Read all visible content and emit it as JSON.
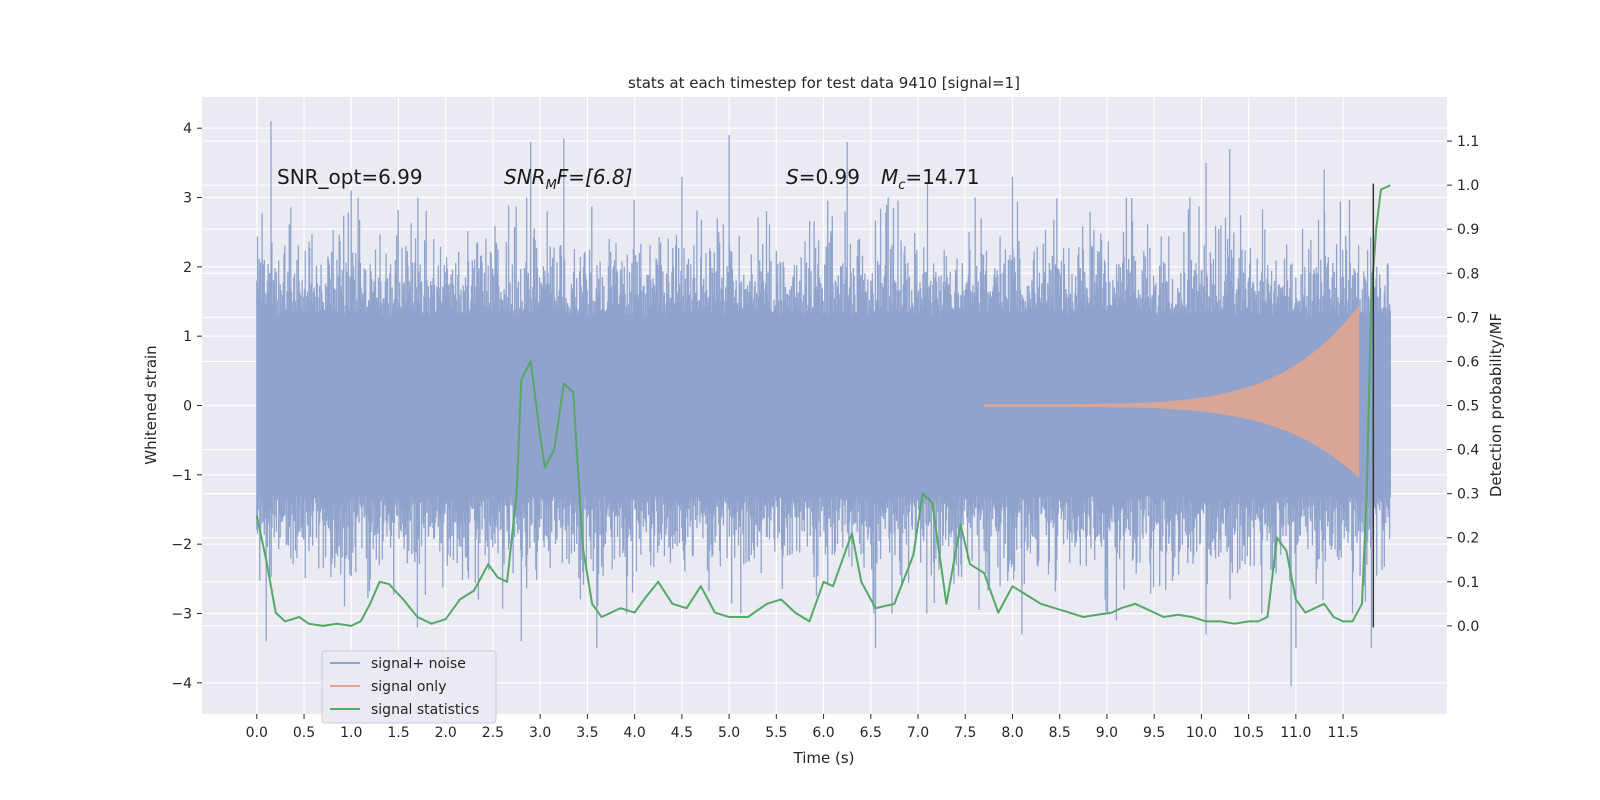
{
  "chart_data": {
    "type": "line",
    "title": "stats at each timestep for test data 9410 [signal=1]",
    "xlabel": "Time (s)",
    "ylabel_left": "Whitened strain",
    "ylabel_right": "Detection probability/MF",
    "xlim": [
      -0.58,
      12.6
    ],
    "ylim_left": [
      -4.45,
      4.45
    ],
    "ylim_right": [
      -0.2,
      1.2
    ],
    "x_ticks": [
      0.0,
      0.5,
      1.0,
      1.5,
      2.0,
      2.5,
      3.0,
      3.5,
      4.0,
      4.5,
      5.0,
      5.5,
      6.0,
      6.5,
      7.0,
      7.5,
      8.0,
      8.5,
      9.0,
      9.5,
      10.0,
      10.5,
      11.0,
      11.5
    ],
    "x_tick_labels": [
      "0.0",
      "0.5",
      "1.0",
      "1.5",
      "2.0",
      "2.5",
      "3.0",
      "3.5",
      "4.0",
      "4.5",
      "5.0",
      "5.5",
      "6.0",
      "6.5",
      "7.0",
      "7.5",
      "8.0",
      "8.5",
      "9.0",
      "9.5",
      "10.0",
      "10.5",
      "11.0",
      "11.5"
    ],
    "y_left_ticks": [
      -4,
      -3,
      -2,
      -1,
      0,
      1,
      2,
      3,
      4
    ],
    "y_left_tick_labels": [
      "−4",
      "−3",
      "−2",
      "−1",
      "0",
      "1",
      "2",
      "3",
      "4"
    ],
    "y_right_ticks": [
      0.0,
      0.1,
      0.2,
      0.3,
      0.4,
      0.5,
      0.6,
      0.7,
      0.8,
      0.9,
      1.0,
      1.1
    ],
    "y_right_tick_labels": [
      "0.0",
      "0.1",
      "0.2",
      "0.3",
      "0.4",
      "0.5",
      "0.6",
      "0.7",
      "0.8",
      "0.9",
      "1.0",
      "1.1"
    ],
    "grid": true,
    "legend_position": "lower-left",
    "annotations": {
      "snr_opt": "SNR_opt=6.99",
      "snr_mf_base": "SNR",
      "snr_mf_sub": "M",
      "snr_mf_rest": "F=[6.8]",
      "s_var": "S",
      "s_rest": "=0.99",
      "mc_base": "M",
      "mc_sub": "c",
      "mc_rest": "=14.71"
    },
    "vline_x": 11.82,
    "series": [
      {
        "name": "signal+ noise",
        "axis": "left",
        "color": "#8fa3cc",
        "time_range": [
          0.0,
          12.0
        ],
        "core_band": [
          -1.3,
          1.3
        ],
        "typical_amplitude": 2.0,
        "peaks_high": [
          [
            0.15,
            4.1
          ],
          [
            2.9,
            3.8
          ],
          [
            3.25,
            3.85
          ],
          [
            5.0,
            3.9
          ],
          [
            6.25,
            3.8
          ],
          [
            10.3,
            3.7
          ],
          [
            4.5,
            3.3
          ],
          [
            8.0,
            3.3
          ],
          [
            10.05,
            3.5
          ],
          [
            11.3,
            3.4
          ],
          [
            1.0,
            3.1
          ],
          [
            7.1,
            3.2
          ]
        ],
        "peaks_low": [
          [
            0.1,
            -3.4
          ],
          [
            2.8,
            -3.4
          ],
          [
            3.6,
            -3.5
          ],
          [
            6.55,
            -3.5
          ],
          [
            8.1,
            -3.3
          ],
          [
            9.1,
            -3.1
          ],
          [
            10.05,
            -3.3
          ],
          [
            10.95,
            -4.05
          ],
          [
            11.0,
            -3.5
          ],
          [
            11.8,
            -3.5
          ],
          [
            1.7,
            -3.2
          ]
        ]
      },
      {
        "name": "signal only",
        "axis": "left",
        "color": "#e0a590",
        "time_range": [
          7.7,
          11.67
        ],
        "amp_start": 0.02,
        "amp_end_pos": 1.45,
        "amp_end_neg": -1.05
      },
      {
        "name": "signal statistics",
        "axis": "right",
        "color": "#55a868",
        "x": [
          0.0,
          0.1,
          0.2,
          0.3,
          0.45,
          0.55,
          0.7,
          0.85,
          1.0,
          1.1,
          1.2,
          1.3,
          1.4,
          1.55,
          1.7,
          1.85,
          2.0,
          2.15,
          2.3,
          2.45,
          2.55,
          2.65,
          2.75,
          2.8,
          2.9,
          3.0,
          3.05,
          3.15,
          3.25,
          3.35,
          3.45,
          3.55,
          3.65,
          3.75,
          3.85,
          4.0,
          4.1,
          4.25,
          4.4,
          4.55,
          4.7,
          4.85,
          5.0,
          5.2,
          5.4,
          5.55,
          5.7,
          5.85,
          6.0,
          6.1,
          6.2,
          6.3,
          6.4,
          6.55,
          6.75,
          6.95,
          7.05,
          7.15,
          7.3,
          7.45,
          7.55,
          7.7,
          7.85,
          8.0,
          8.15,
          8.3,
          8.45,
          8.6,
          8.75,
          8.9,
          9.05,
          9.15,
          9.3,
          9.45,
          9.6,
          9.75,
          9.9,
          10.05,
          10.2,
          10.35,
          10.5,
          10.6,
          10.7,
          10.8,
          10.9,
          11.0,
          11.1,
          11.2,
          11.3,
          11.4,
          11.5,
          11.6,
          11.7,
          11.75,
          11.8,
          11.85,
          11.9,
          12.0
        ],
        "y": [
          0.25,
          0.15,
          0.03,
          0.01,
          0.02,
          0.005,
          0.0,
          0.005,
          0.0,
          0.01,
          0.05,
          0.1,
          0.095,
          0.06,
          0.02,
          0.005,
          0.015,
          0.06,
          0.08,
          0.14,
          0.11,
          0.1,
          0.3,
          0.56,
          0.6,
          0.43,
          0.36,
          0.4,
          0.55,
          0.53,
          0.18,
          0.05,
          0.02,
          0.03,
          0.04,
          0.03,
          0.06,
          0.1,
          0.05,
          0.04,
          0.09,
          0.03,
          0.02,
          0.02,
          0.05,
          0.06,
          0.03,
          0.01,
          0.1,
          0.09,
          0.15,
          0.21,
          0.1,
          0.04,
          0.05,
          0.16,
          0.3,
          0.28,
          0.05,
          0.23,
          0.14,
          0.12,
          0.03,
          0.09,
          0.07,
          0.05,
          0.04,
          0.03,
          0.02,
          0.025,
          0.03,
          0.04,
          0.05,
          0.035,
          0.02,
          0.025,
          0.02,
          0.01,
          0.01,
          0.005,
          0.01,
          0.01,
          0.02,
          0.2,
          0.17,
          0.06,
          0.03,
          0.04,
          0.05,
          0.02,
          0.01,
          0.01,
          0.05,
          0.3,
          0.75,
          0.9,
          0.99,
          1.0
        ]
      }
    ]
  }
}
